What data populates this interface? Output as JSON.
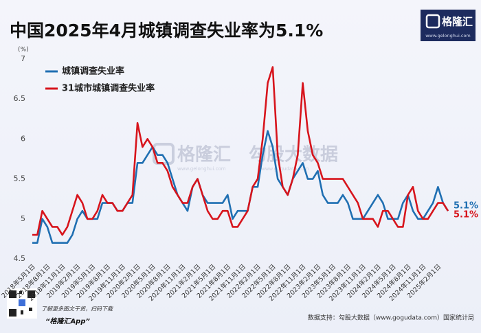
{
  "chart_data": {
    "type": "line",
    "title": "中国2025年4月城镇调查失业率为5.1%",
    "y_unit": "(%)",
    "logo": {
      "name": "格隆汇",
      "url": "www.gelonghui.com"
    },
    "watermark": [
      "格隆汇",
      "www.gelonghui.com",
      "勾股大数据",
      "www.gogudata.com"
    ],
    "footer": {
      "qr_caption": "了解更多图文干货，扫码下载",
      "app": "“格隆汇App”",
      "source": "数据支持：勾股大数据（www.gogudata.com）国家统计局"
    },
    "categories": [
      "2018年5月1日",
      null,
      null,
      "2018年8月1日",
      null,
      null,
      "2018年11月1日",
      null,
      null,
      "2019年2月1日",
      null,
      null,
      "2019年5月1日",
      null,
      null,
      "2019年8月1日",
      null,
      null,
      "2019年11月1日",
      null,
      null,
      "2020年2月1日",
      null,
      null,
      "2020年5月1日",
      null,
      null,
      "2020年8月1日",
      null,
      null,
      "2020年11月1日",
      null,
      null,
      "2021年2月1日",
      null,
      null,
      "2021年5月1日",
      null,
      null,
      "2021年8月1日",
      null,
      null,
      "2021年11月1日",
      null,
      null,
      "2022年2月1日",
      null,
      null,
      "2022年5月1日",
      null,
      null,
      "2022年8月1日",
      null,
      null,
      "2022年11月1日",
      null,
      null,
      "2023年2月1日",
      null,
      null,
      "2023年5月1日",
      null,
      null,
      "2023年8月1日",
      null,
      null,
      "2023年11月1日",
      null,
      null,
      "2024年2月1日",
      null,
      null,
      "2024年5月1日",
      null,
      null,
      "2024年8月1日",
      null,
      null,
      "2024年11月1日",
      null,
      null,
      "2025年2月1日",
      null,
      null
    ],
    "series": [
      {
        "name": "城镇调查失业率",
        "color": "#1f6fb2",
        "end_label": "5.1%",
        "values": [
          4.7,
          4.7,
          5.0,
          4.9,
          4.7,
          4.7,
          4.7,
          4.7,
          4.8,
          5.0,
          5.1,
          5.0,
          5.0,
          5.0,
          5.2,
          5.2,
          5.2,
          5.1,
          5.1,
          5.2,
          5.2,
          5.7,
          5.7,
          5.8,
          5.9,
          5.8,
          5.8,
          5.7,
          5.5,
          5.3,
          5.2,
          5.1,
          5.4,
          5.5,
          5.3,
          5.2,
          5.2,
          5.2,
          5.2,
          5.3,
          5.0,
          5.1,
          5.1,
          5.1,
          5.4,
          5.4,
          5.8,
          6.1,
          5.9,
          5.5,
          5.4,
          5.3,
          5.5,
          5.6,
          5.7,
          5.5,
          5.5,
          5.6,
          5.3,
          5.2,
          5.2,
          5.2,
          5.3,
          5.2,
          5.0,
          5.0,
          5.0,
          5.1,
          5.2,
          5.3,
          5.2,
          5.0,
          5.0,
          5.0,
          5.2,
          5.3,
          5.1,
          5.0,
          5.0,
          5.1,
          5.2,
          5.4,
          5.2,
          5.1
        ]
      },
      {
        "name": "31城市城镇调查失业率",
        "color": "#d7141c",
        "end_label": "5.1%",
        "values": [
          4.8,
          4.8,
          5.1,
          5.0,
          4.9,
          4.9,
          4.8,
          4.9,
          5.1,
          5.3,
          5.2,
          5.0,
          5.0,
          5.1,
          5.3,
          5.2,
          5.2,
          5.1,
          5.1,
          5.2,
          5.3,
          6.2,
          5.9,
          6.0,
          5.9,
          5.7,
          5.7,
          5.6,
          5.4,
          5.3,
          5.2,
          5.2,
          5.4,
          5.5,
          5.3,
          5.1,
          5.0,
          5.0,
          5.1,
          5.1,
          4.9,
          4.9,
          5.0,
          5.1,
          5.4,
          5.5,
          6.0,
          6.7,
          6.9,
          5.8,
          5.4,
          5.3,
          5.5,
          5.8,
          6.7,
          6.1,
          5.8,
          5.7,
          5.5,
          5.5,
          5.5,
          5.5,
          5.5,
          5.4,
          5.3,
          5.2,
          5.0,
          5.0,
          5.0,
          4.9,
          5.1,
          5.1,
          5.0,
          4.9,
          4.9,
          5.3,
          5.4,
          5.1,
          5.0,
          5.0,
          5.1,
          5.2,
          5.2,
          5.1
        ]
      }
    ],
    "ylim": [
      4.5,
      7
    ],
    "yticks": [
      4.5,
      5,
      5.5,
      6,
      6.5,
      7
    ],
    "grid": false,
    "legend": "upper left"
  }
}
